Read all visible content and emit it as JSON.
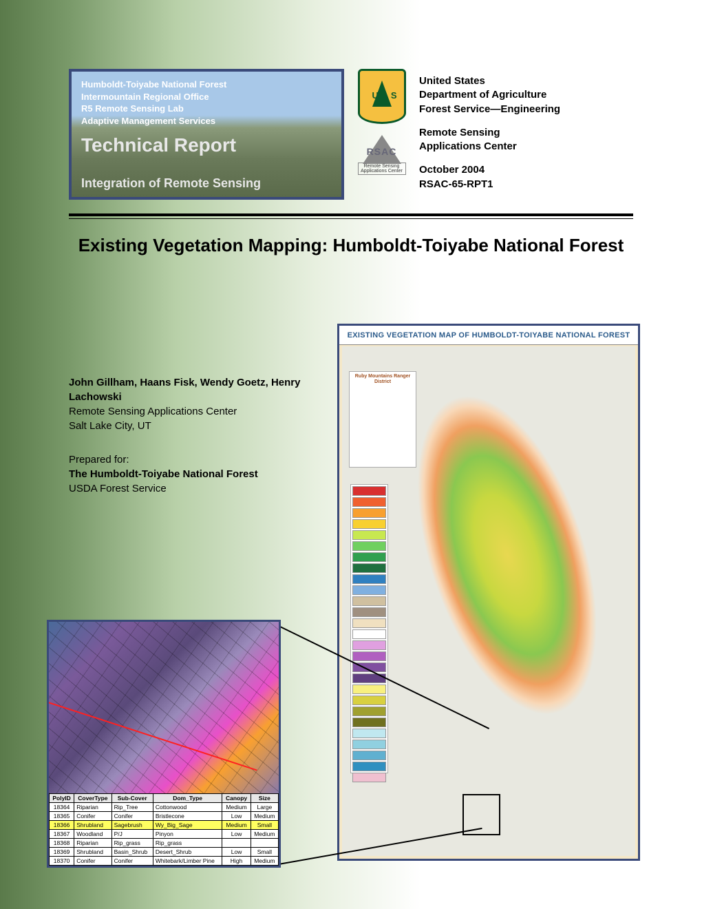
{
  "badge": {
    "line1": "Humboldt-Toiyabe National Forest",
    "line2": "Intermountain Regional Office",
    "line3": "R5 Remote Sensing Lab",
    "line4": "Adaptive Management Services",
    "title": "Technical Report",
    "subtitle": "Integration of Remote Sensing"
  },
  "agency": {
    "l1": "United States",
    "l2": "Department of Agriculture",
    "l3": "Forest Service—Engineering",
    "l4": "Remote Sensing",
    "l5": "Applications Center",
    "l6": "October 2004",
    "l7": "RSAC-65-RPT1"
  },
  "rsac": {
    "label": "RSAC",
    "sub": "Remote Sensing Applications Center"
  },
  "title": "Existing Vegetation Mapping: Humboldt-Toiyabe National Forest",
  "authors": {
    "names": "John Gillham, Haans Fisk, Wendy Goetz, Henry Lachowski",
    "org1": "Remote Sensing Applications Center",
    "org2": "Salt Lake City, UT",
    "prep": "Prepared for:",
    "for1": "The Humboldt-Toiyabe National Forest",
    "for2": "USDA Forest Service"
  },
  "map": {
    "title": "EXISTING VEGETATION MAP OF HUMBOLDT-TOIYABE NATIONAL FOREST",
    "district": "Ruby Mountains Ranger District",
    "legend_colors": [
      "#d83030",
      "#f06030",
      "#f8a030",
      "#f8d030",
      "#c8e850",
      "#70d060",
      "#30a050",
      "#207040",
      "#3080c0",
      "#80b0e0",
      "#d0c0a0",
      "#a09080",
      "#f0e0c0",
      "#ffffff",
      "#e0a0e0",
      "#b060c0",
      "#8050a0",
      "#604080",
      "#f8f080",
      "#d8d040",
      "#a0a030",
      "#707020",
      "#c0e8f0",
      "#90d0e0",
      "#60b0d0",
      "#3090c0",
      "#f0c0d0"
    ]
  },
  "table": {
    "headers": [
      "PolyID",
      "CoverType",
      "Sub-Cover",
      "Dom_Type",
      "Canopy",
      "Size"
    ],
    "rows": [
      {
        "hl": false,
        "c": [
          "18364",
          "Riparian",
          "Rip_Tree",
          "Cottonwood",
          "Medium",
          "Large"
        ]
      },
      {
        "hl": false,
        "c": [
          "18365",
          "Conifer",
          "Conifer",
          "Bristlecone",
          "Low",
          "Medium"
        ]
      },
      {
        "hl": true,
        "c": [
          "18366",
          "Shrubland",
          "Sagebrush",
          "Wy_Big_Sage",
          "Medium",
          "Small"
        ]
      },
      {
        "hl": false,
        "c": [
          "18367",
          "Woodland",
          "P/J",
          "Pinyon",
          "Low",
          "Medium"
        ]
      },
      {
        "hl": false,
        "c": [
          "18368",
          "Riparian",
          "Rip_grass",
          "Rip_grass",
          "",
          ""
        ]
      },
      {
        "hl": false,
        "c": [
          "18369",
          "Shrubland",
          "Basin_Shrub",
          "Desert_Shrub",
          "Low",
          "Small"
        ]
      },
      {
        "hl": false,
        "c": [
          "18370",
          "Conifer",
          "Conifer",
          "Whitebark/Limber Pine",
          "High",
          "Medium"
        ]
      }
    ]
  },
  "colors": {
    "badge_border": "#3a4a7a",
    "shield_green": "#0a5a2a",
    "shield_yellow": "#f5c040"
  }
}
